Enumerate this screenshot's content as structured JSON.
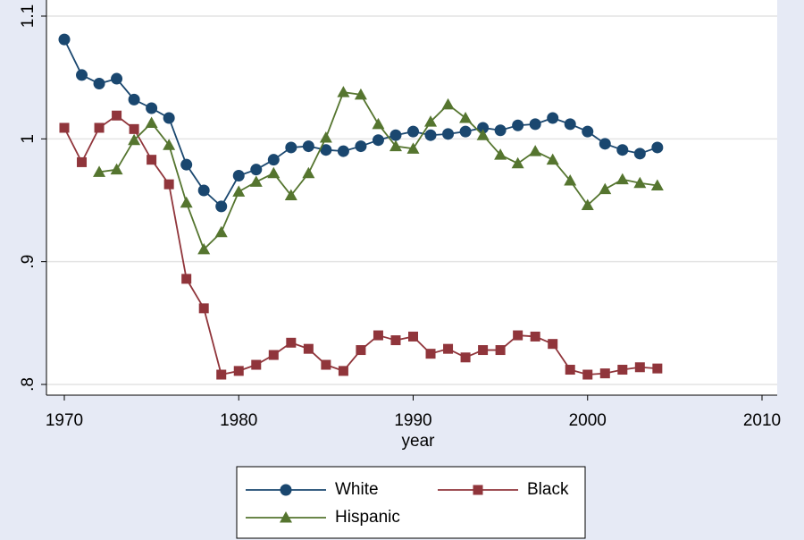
{
  "chart_data": {
    "type": "line",
    "xlabel": "year",
    "x": [
      1970,
      1971,
      1972,
      1973,
      1974,
      1975,
      1976,
      1977,
      1978,
      1979,
      1980,
      1981,
      1982,
      1983,
      1984,
      1985,
      1986,
      1987,
      1988,
      1989,
      1990,
      1991,
      1992,
      1993,
      1994,
      1995,
      1996,
      1997,
      1998,
      1999,
      2000,
      2001,
      2002,
      2003,
      2004
    ],
    "series": [
      {
        "name": "White",
        "color": "#1a476f",
        "marker": "circle",
        "values": [
          1.081,
          1.052,
          1.045,
          1.049,
          1.032,
          1.025,
          1.017,
          0.979,
          0.958,
          0.945,
          0.97,
          0.975,
          0.983,
          0.993,
          0.994,
          0.991,
          0.99,
          0.994,
          0.999,
          1.003,
          1.006,
          1.003,
          1.004,
          1.006,
          1.009,
          1.007,
          1.011,
          1.012,
          1.017,
          1.012,
          1.006,
          0.996,
          0.991,
          0.988,
          0.993
        ]
      },
      {
        "name": "Black",
        "color": "#90353b",
        "marker": "square",
        "values": [
          1.009,
          0.981,
          1.009,
          1.019,
          1.008,
          0.983,
          0.963,
          0.886,
          0.862,
          0.808,
          0.811,
          0.816,
          0.824,
          0.834,
          0.829,
          0.816,
          0.811,
          0.828,
          0.84,
          0.836,
          0.839,
          0.825,
          0.829,
          0.822,
          0.828,
          0.828,
          0.84,
          0.839,
          0.833,
          0.812,
          0.808,
          0.809,
          0.812,
          0.814,
          0.813
        ]
      },
      {
        "name": "Hispanic",
        "color": "#55752f",
        "marker": "triangle",
        "values": [
          null,
          null,
          0.973,
          0.975,
          0.999,
          1.013,
          0.995,
          0.948,
          0.91,
          0.924,
          0.957,
          0.965,
          0.972,
          0.954,
          0.972,
          1.001,
          1.038,
          1.036,
          1.012,
          0.994,
          0.992,
          1.014,
          1.028,
          1.017,
          1.003,
          0.987,
          0.98,
          0.99,
          0.983,
          0.966,
          0.946,
          0.959,
          0.967,
          0.964,
          0.962
        ]
      }
    ],
    "xlim": [
      1970,
      2010
    ],
    "xticks": [
      1970,
      1980,
      1990,
      2000,
      2010
    ],
    "ylim": [
      0.8,
      1.1
    ],
    "yticks": [
      {
        "value": 0.8,
        "label": ".8"
      },
      {
        "value": 0.9,
        "label": ".9"
      },
      1,
      1.1
    ],
    "grid": true
  }
}
